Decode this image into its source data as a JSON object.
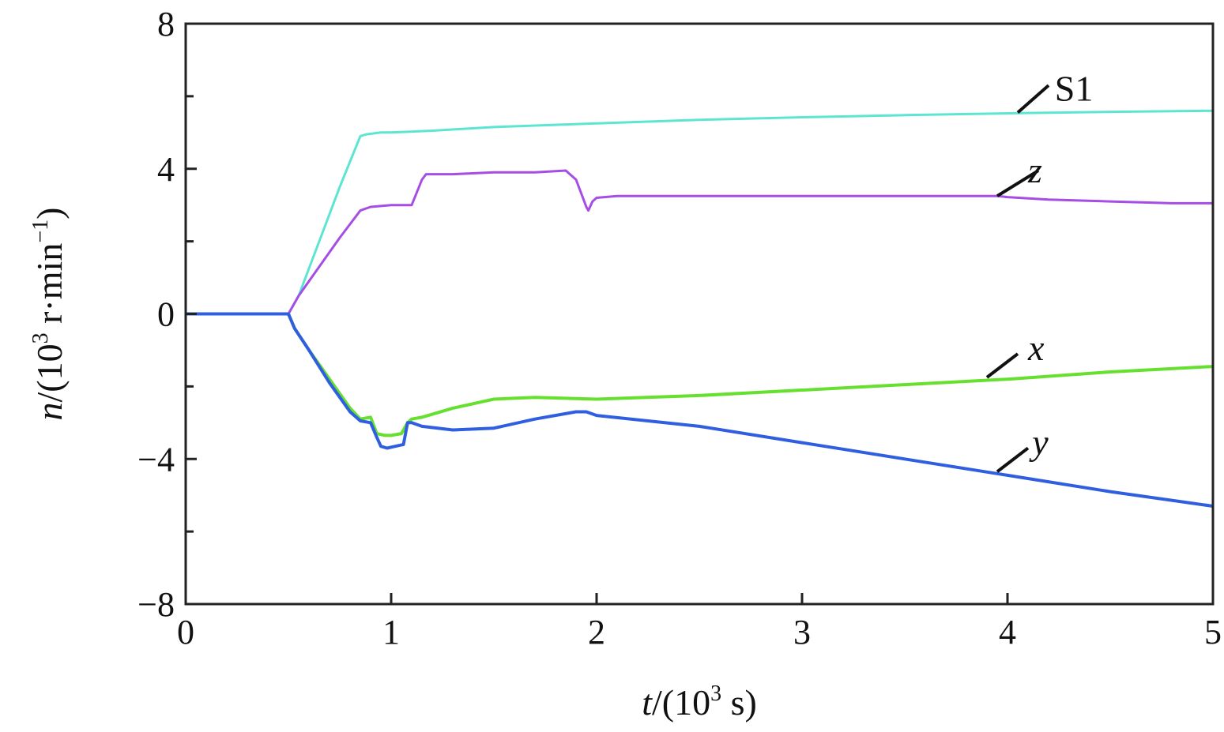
{
  "chart_data": {
    "type": "line",
    "xlabel": {
      "var": "t",
      "unit_prefix": "/(10",
      "exp": "3",
      "unit_suffix": " s)"
    },
    "ylabel": {
      "var": "n",
      "unit_prefix": "/(10",
      "exp": "3",
      "unit_mid": " r·min",
      "exp2": "−1",
      "unit_suffix": ")"
    },
    "xlim": [
      0,
      5
    ],
    "ylim": [
      -8,
      8
    ],
    "x_ticks": [
      0,
      1,
      2,
      3,
      4,
      5
    ],
    "x_tick_labels": [
      "0",
      "1",
      "2",
      "3",
      "4",
      "5"
    ],
    "y_ticks": [
      -8,
      -4,
      0,
      4,
      8
    ],
    "y_tick_labels": [
      "−8",
      "−4",
      "0",
      "4",
      "8"
    ],
    "y_minor_ticks": [
      -6,
      -2,
      2,
      6
    ],
    "grid": false,
    "series": [
      {
        "name": "S1",
        "italic": false,
        "color": "#5ce6d2",
        "x": [
          0,
          0.5,
          0.55,
          0.65,
          0.75,
          0.85,
          0.88,
          0.95,
          1.0,
          1.2,
          1.5,
          2.0,
          2.5,
          3.0,
          3.5,
          4.0,
          4.5,
          5.0
        ],
        "y": [
          0,
          0,
          0.5,
          2.0,
          3.5,
          4.9,
          4.95,
          5.0,
          5.0,
          5.05,
          5.15,
          5.25,
          5.35,
          5.42,
          5.48,
          5.53,
          5.57,
          5.6
        ]
      },
      {
        "name": "z",
        "italic": true,
        "color": "#a64de6",
        "x": [
          0,
          0.5,
          0.55,
          0.65,
          0.75,
          0.85,
          0.9,
          1.0,
          1.1,
          1.15,
          1.17,
          1.3,
          1.5,
          1.7,
          1.85,
          1.9,
          1.95,
          1.96,
          1.98,
          2.0,
          2.1,
          2.5,
          3.0,
          3.5,
          3.95,
          4.0,
          4.2,
          4.5,
          4.8,
          5.0
        ],
        "y": [
          0,
          0,
          0.5,
          1.3,
          2.1,
          2.85,
          2.95,
          3.0,
          3.0,
          3.7,
          3.85,
          3.85,
          3.9,
          3.9,
          3.95,
          3.7,
          2.95,
          2.85,
          3.1,
          3.2,
          3.25,
          3.25,
          3.25,
          3.25,
          3.25,
          3.22,
          3.15,
          3.1,
          3.05,
          3.05
        ]
      },
      {
        "name": "x",
        "italic": true,
        "color": "#66e02e",
        "x": [
          0,
          0.5,
          0.53,
          0.6,
          0.7,
          0.8,
          0.85,
          0.9,
          0.93,
          0.97,
          1.0,
          1.05,
          1.08,
          1.1,
          1.15,
          1.3,
          1.5,
          1.7,
          2.0,
          2.5,
          3.0,
          3.5,
          4.0,
          4.5,
          5.0
        ],
        "y": [
          0,
          0,
          -0.4,
          -1.0,
          -1.8,
          -2.6,
          -2.9,
          -2.85,
          -3.3,
          -3.35,
          -3.35,
          -3.3,
          -3.0,
          -2.9,
          -2.85,
          -2.6,
          -2.35,
          -2.3,
          -2.35,
          -2.25,
          -2.1,
          -1.95,
          -1.8,
          -1.6,
          -1.45
        ]
      },
      {
        "name": "y",
        "italic": true,
        "color": "#2f5fe0",
        "x": [
          0,
          0.5,
          0.53,
          0.6,
          0.7,
          0.8,
          0.85,
          0.9,
          0.93,
          0.95,
          0.98,
          1.02,
          1.06,
          1.08,
          1.1,
          1.15,
          1.3,
          1.5,
          1.7,
          1.9,
          1.95,
          2.0,
          2.5,
          3.0,
          3.5,
          4.0,
          4.5,
          5.0
        ],
        "y": [
          0,
          0,
          -0.4,
          -1.0,
          -1.9,
          -2.7,
          -2.95,
          -3.0,
          -3.4,
          -3.65,
          -3.7,
          -3.65,
          -3.6,
          -3.0,
          -3.0,
          -3.1,
          -3.2,
          -3.15,
          -2.9,
          -2.7,
          -2.7,
          -2.8,
          -3.1,
          -3.55,
          -4.0,
          -4.45,
          -4.9,
          -5.3
        ]
      }
    ],
    "annotations": [
      {
        "series": "S1",
        "text": "S1",
        "italic": false,
        "leader_from": [
          4.05,
          5.55
        ],
        "leader_to": [
          4.2,
          6.3
        ],
        "text_at": [
          4.23,
          6.2
        ]
      },
      {
        "series": "z",
        "text": "z",
        "italic": true,
        "leader_from": [
          3.95,
          3.25
        ],
        "leader_to": [
          4.15,
          3.95
        ],
        "text_at": [
          4.1,
          3.95
        ]
      },
      {
        "series": "x",
        "text": "x",
        "italic": true,
        "leader_from": [
          3.9,
          -1.75
        ],
        "leader_to": [
          4.05,
          -1.1
        ],
        "text_at": [
          4.1,
          -0.95
        ]
      },
      {
        "series": "y",
        "text": "y",
        "italic": true,
        "leader_from": [
          3.95,
          -4.35
        ],
        "leader_to": [
          4.1,
          -3.7
        ],
        "text_at": [
          4.12,
          -3.55
        ]
      }
    ]
  }
}
